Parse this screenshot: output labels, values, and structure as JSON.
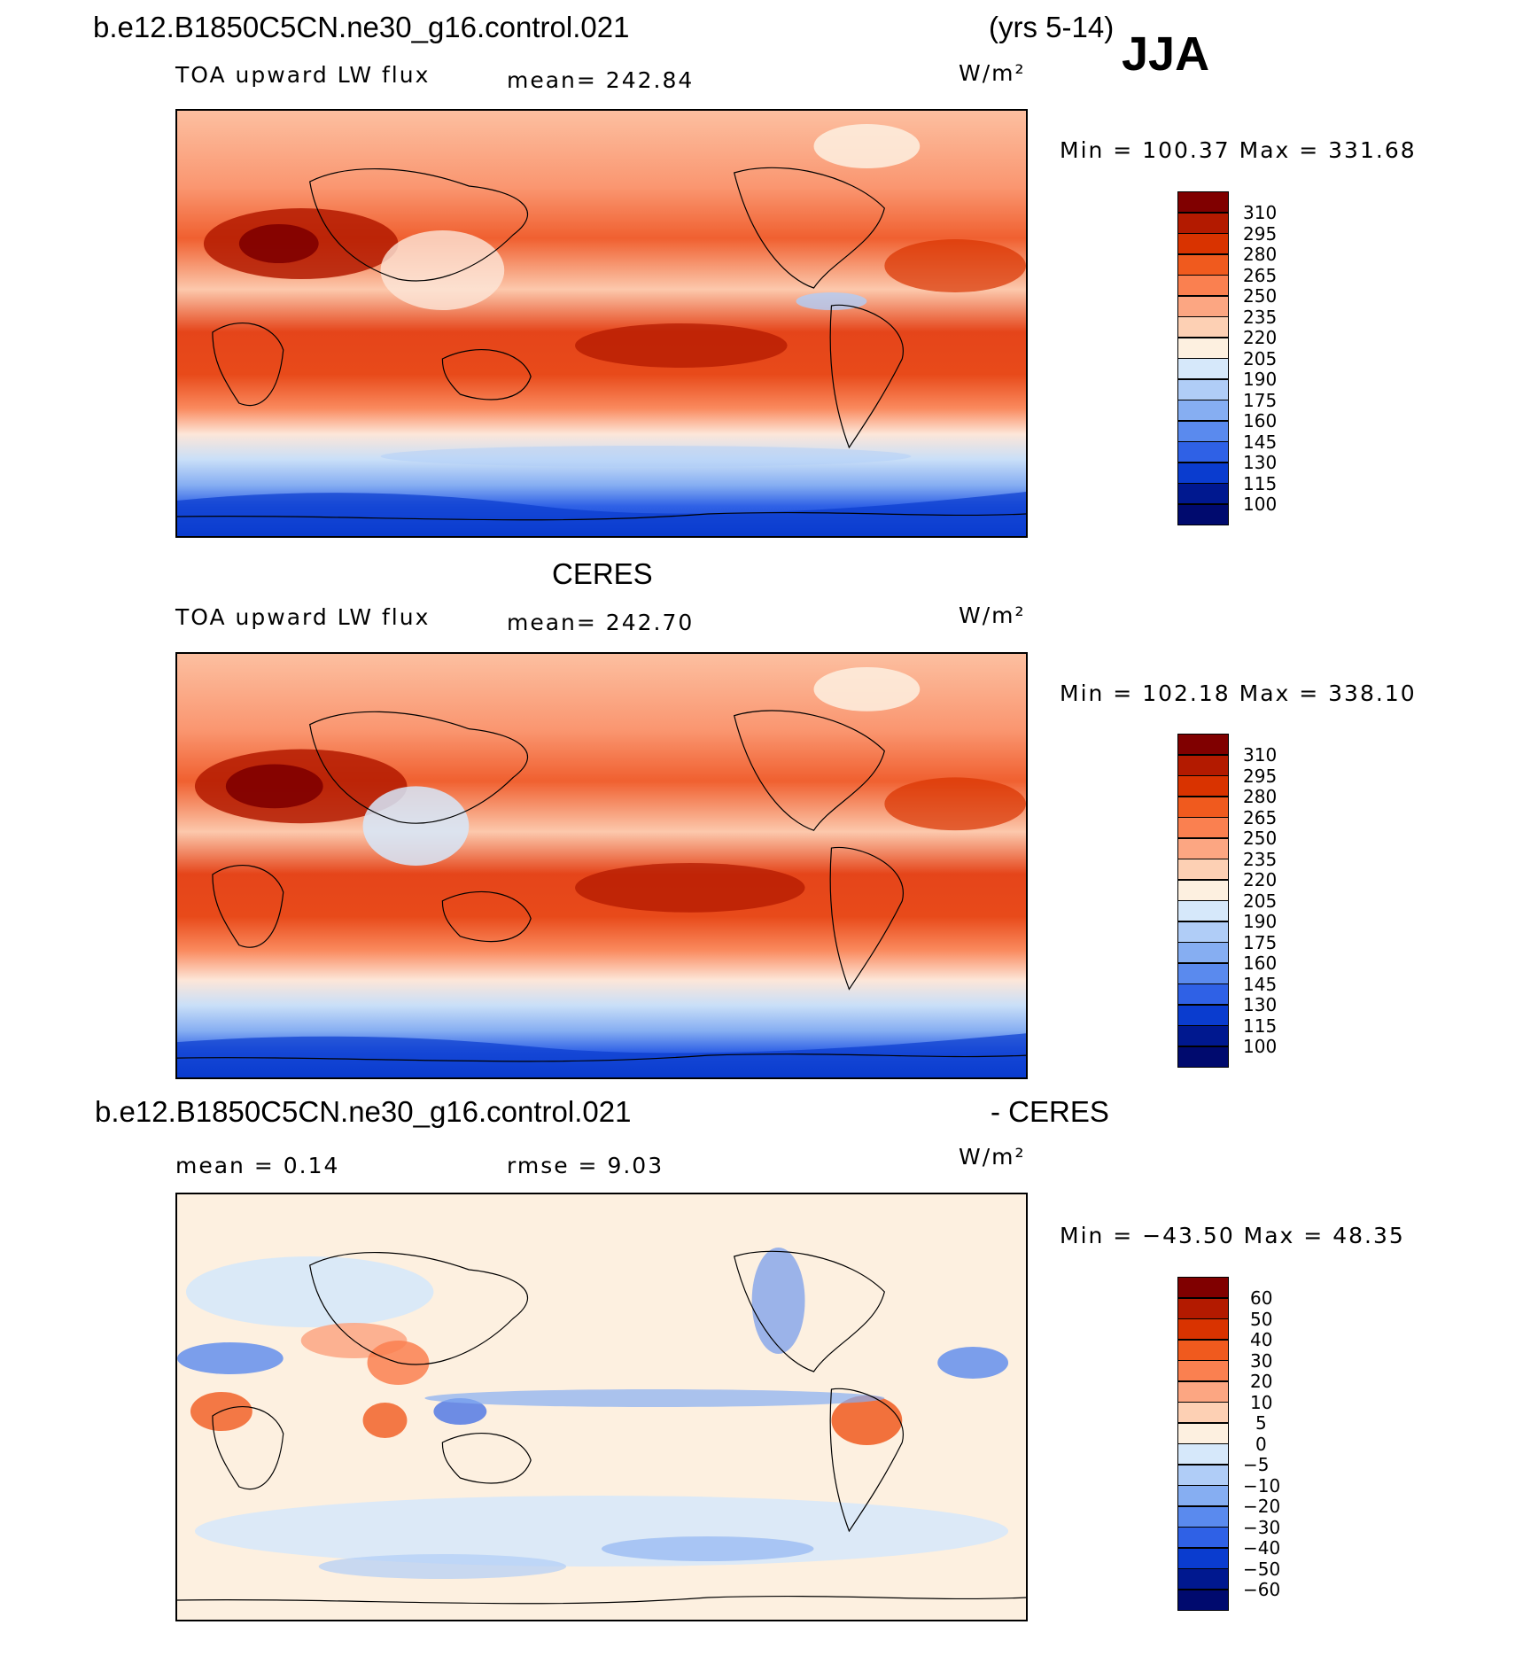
{
  "header": {
    "case_name": "b.e12.B1850C5CN.ne30_g16.control.021",
    "years": "(yrs 5-14)",
    "season": "JJA"
  },
  "panel1": {
    "variable": "TOA upward LW flux",
    "mean": "mean=  242.84",
    "units": "W/m²",
    "minmax": "Min  =  100.37  Max  =  331.68"
  },
  "panel2": {
    "title": "CERES",
    "variable": "TOA upward LW flux",
    "mean": "mean=  242.70",
    "units": "W/m²",
    "minmax": "Min  =  102.18  Max  =  338.10"
  },
  "panel3": {
    "title_left": "b.e12.B1850C5CN.ne30_g16.control.021",
    "title_right": "- CERES",
    "mean": "mean  =     0.14",
    "rmse": "rmse  =     9.03",
    "units": "W/m²",
    "minmax": "Min  =  −43.50  Max  =    48.35"
  },
  "colorbar_abs": {
    "labels": [
      "310",
      "295",
      "280",
      "265",
      "250",
      "235",
      "220",
      "205",
      "190",
      "175",
      "160",
      "145",
      "130",
      "115",
      "100"
    ],
    "colors": [
      "#800000",
      "#b31a00",
      "#d93300",
      "#f05a1e",
      "#fa8050",
      "#fca682",
      "#fdd0b4",
      "#fdf0e0",
      "#d6e8fa",
      "#b0cdf7",
      "#86aef2",
      "#5a8aee",
      "#2f61e6",
      "#0a3ccf",
      "#00188f",
      "#000a6e"
    ]
  },
  "colorbar_diff": {
    "labels": [
      "60",
      "50",
      "40",
      "30",
      "20",
      "10",
      "5",
      "0",
      "−5",
      "−10",
      "−20",
      "−30",
      "−40",
      "−50",
      "−60"
    ],
    "colors": [
      "#800000",
      "#b31a00",
      "#d93300",
      "#f05a1e",
      "#fa8050",
      "#fca682",
      "#fdd0b4",
      "#fdf0e0",
      "#d6e8fa",
      "#b0cdf7",
      "#86aef2",
      "#5a8aee",
      "#2f61e6",
      "#0a3ccf",
      "#00188f",
      "#000a6e"
    ]
  }
}
